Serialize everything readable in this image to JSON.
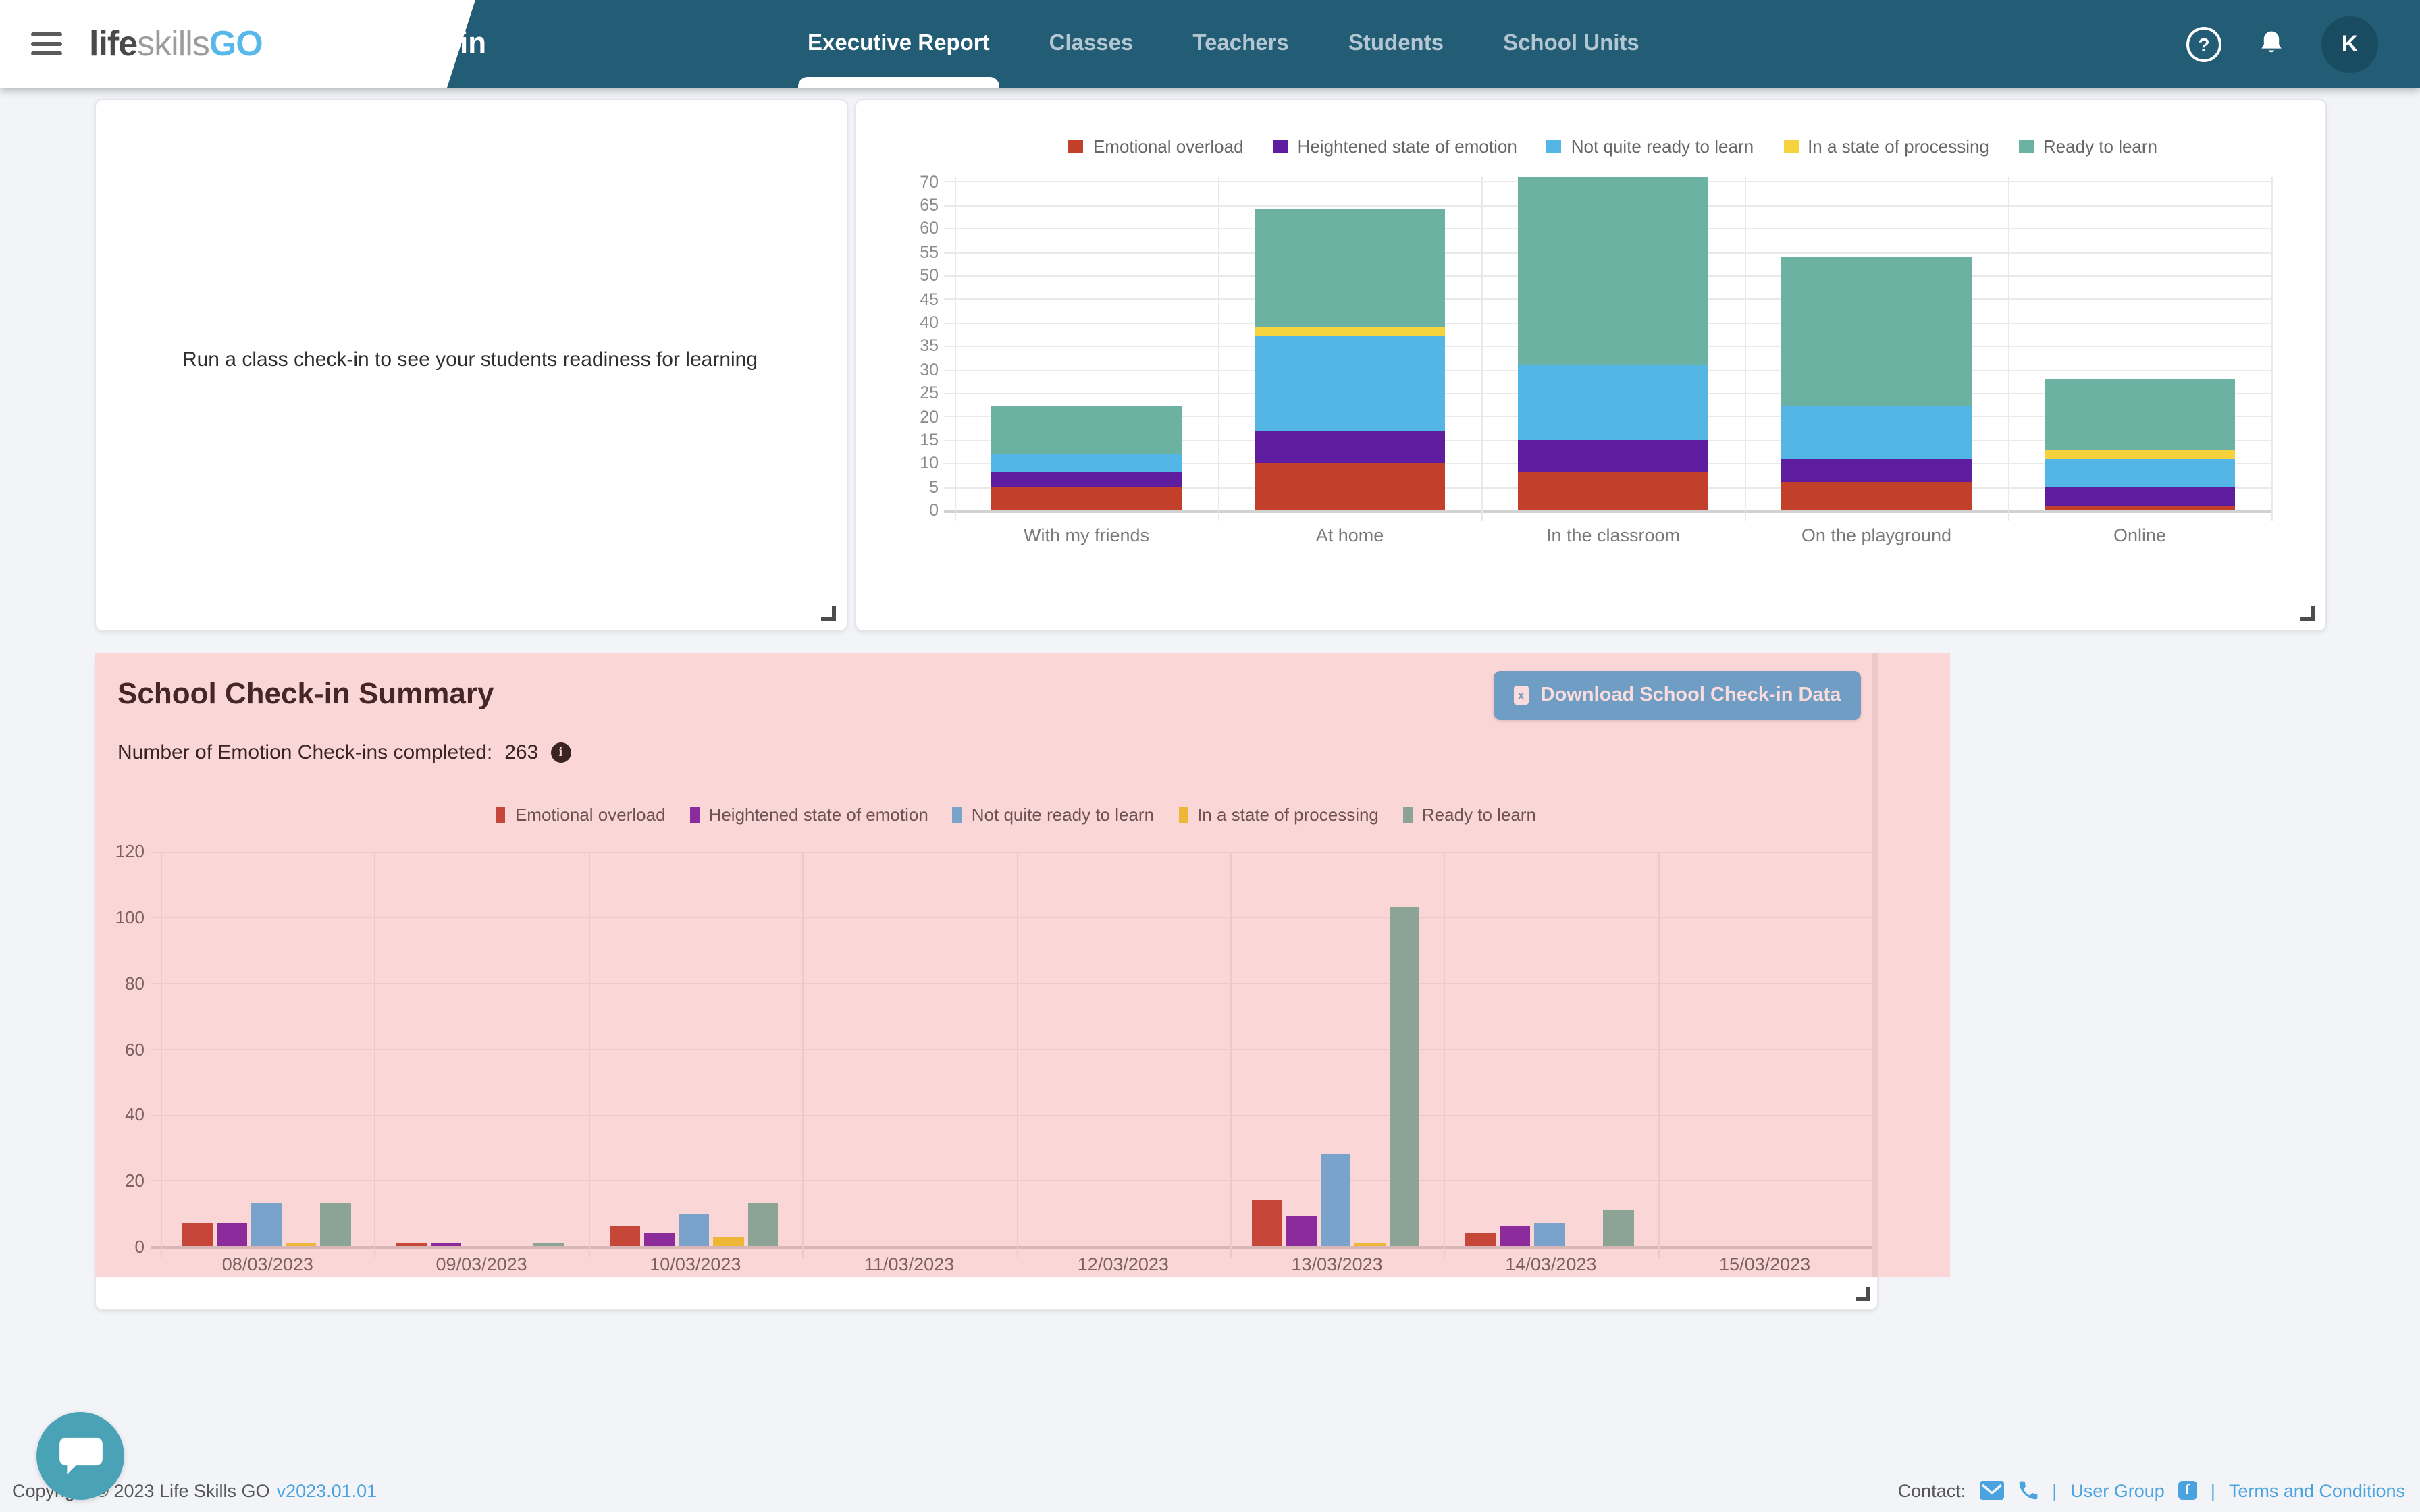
{
  "navbar": {
    "brand": {
      "life": "life",
      "skills": "skills",
      "go": "GO"
    },
    "title": "School Admin",
    "tabs": [
      {
        "label": "Executive Report",
        "active": true
      },
      {
        "label": "Classes",
        "active": false
      },
      {
        "label": "Teachers",
        "active": false
      },
      {
        "label": "Students",
        "active": false
      },
      {
        "label": "School Units",
        "active": false
      }
    ],
    "avatar_initial": "K",
    "help_glyph": "?"
  },
  "icons": {
    "hamburger": "menu",
    "help": "question-circle",
    "notifications": "bell",
    "download_file": "file-excel",
    "info": "i",
    "contact_email": "envelope",
    "contact_phone": "phone",
    "user_group_facebook": "facebook-f",
    "chat": "speech-bubble",
    "resize_grip": "corner-handle"
  },
  "readiness_card": {
    "message": "Run a class check-in to see your students readiness for learning"
  },
  "summary": {
    "title": "School Check-in Summary",
    "count_label": "Number of Emotion Check-ins completed:",
    "count": "263",
    "download_button": "Download School Check-in Data",
    "panel_color": "#fbd6d6",
    "button_color": "#6f9dc4"
  },
  "footer": {
    "copyright": "Copyright © 2023 Life Skills GO",
    "version": "v2023.01.01",
    "contact_label": "Contact:",
    "user_group": "User Group",
    "separator": "|",
    "terms": "Terms and Conditions",
    "link_color": "#4aa3df"
  },
  "chart_data": [
    {
      "id": "readiness-by-context",
      "type": "bar",
      "stacked": true,
      "title": "",
      "xlabel": "",
      "ylabel": "",
      "categories": [
        "With my friends",
        "At home",
        "In the classroom",
        "On the playground",
        "Online"
      ],
      "series": [
        {
          "name": "Emotional overload",
          "color": "#c2402a",
          "values": [
            5,
            10,
            8,
            6,
            1
          ]
        },
        {
          "name": "Heightened state of emotion",
          "color": "#5e1d9e",
          "values": [
            3,
            7,
            7,
            5,
            4
          ]
        },
        {
          "name": "Not quite ready to learn",
          "color": "#54b6e4",
          "values": [
            4,
            20,
            16,
            11,
            6
          ]
        },
        {
          "name": "In a state of processing",
          "color": "#f6d33c",
          "values": [
            0,
            2,
            0,
            0,
            2
          ]
        },
        {
          "name": "Ready to learn",
          "color": "#6bb2a2",
          "values": [
            10,
            25,
            40,
            32,
            15
          ]
        }
      ],
      "totals": [
        22,
        64,
        71,
        54,
        28
      ],
      "ylim": [
        0,
        71
      ],
      "yticks": [
        0,
        5,
        10,
        15,
        20,
        25,
        30,
        35,
        40,
        45,
        50,
        55,
        60,
        65,
        70
      ],
      "grid": true,
      "legend_position": "top"
    },
    {
      "id": "school-checkin-summary",
      "type": "bar",
      "stacked": false,
      "title": "School Check-in Summary",
      "xlabel": "",
      "ylabel": "",
      "categories": [
        "08/03/2023",
        "09/03/2023",
        "10/03/2023",
        "11/03/2023",
        "12/03/2023",
        "13/03/2023",
        "14/03/2023",
        "15/03/2023"
      ],
      "series": [
        {
          "name": "Emotional overload",
          "color": "#c6463a",
          "values": [
            7,
            1,
            6,
            0,
            0,
            14,
            4,
            0
          ]
        },
        {
          "name": "Heightened state of emotion",
          "color": "#8c2b9c",
          "values": [
            7,
            1,
            4,
            0,
            0,
            9,
            6,
            0
          ]
        },
        {
          "name": "Not quite ready to learn",
          "color": "#7aa3cb",
          "values": [
            13,
            0,
            10,
            0,
            0,
            28,
            7,
            0
          ]
        },
        {
          "name": "In a state of processing",
          "color": "#edb636",
          "values": [
            1,
            0,
            3,
            0,
            0,
            1,
            0,
            0
          ]
        },
        {
          "name": "Ready to learn",
          "color": "#8ba496",
          "values": [
            13,
            1,
            13,
            0,
            0,
            103,
            11,
            0
          ]
        }
      ],
      "ylim": [
        0,
        120
      ],
      "yticks": [
        0,
        20,
        40,
        60,
        80,
        100,
        120
      ],
      "grid": true,
      "legend_position": "top"
    }
  ]
}
